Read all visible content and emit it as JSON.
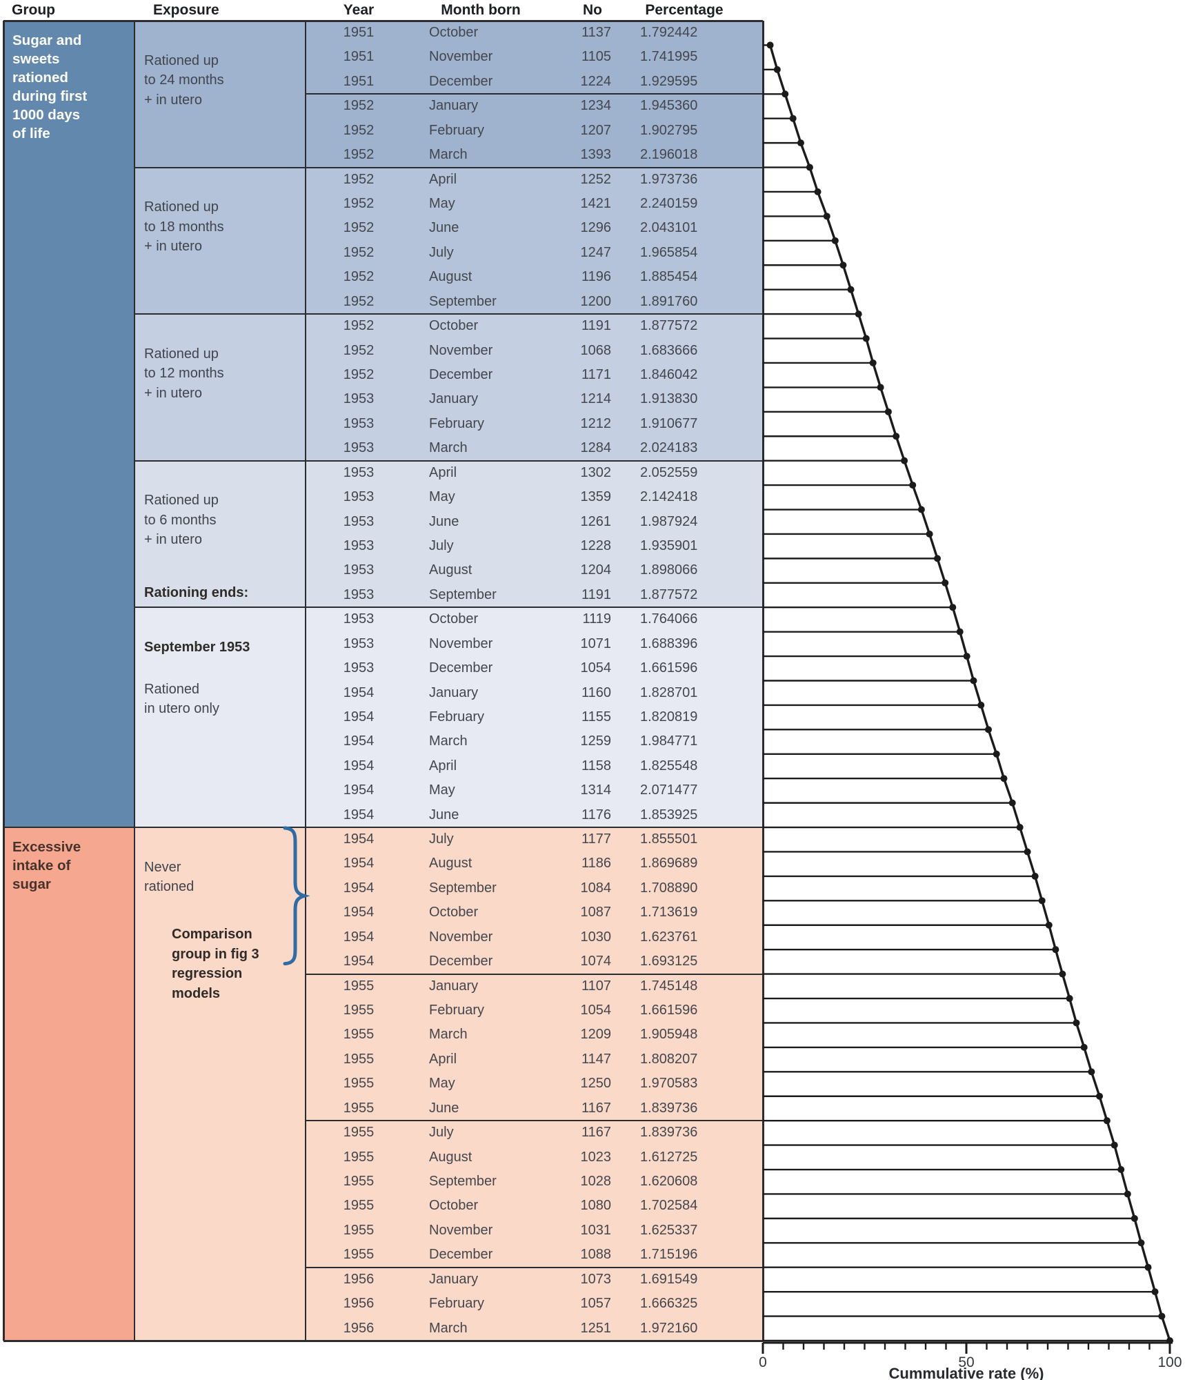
{
  "headers": {
    "group": "Group",
    "exposure": "Exposure",
    "year": "Year",
    "month": "Month born",
    "no": "No",
    "percentage": "Percentage"
  },
  "groups": [
    {
      "label": "Sugar and\nsweets\nrationed\nduring first\n1000 days\nof life",
      "rows": [
        1,
        33
      ],
      "bg": "#6289ad",
      "text": "#ffffff"
    },
    {
      "label": "Excessive\nintake of\nsugar",
      "rows": [
        34,
        54
      ],
      "bg": "#f6a78f",
      "text": "#46332b"
    }
  ],
  "exposure_cells": [
    {
      "rows": [
        1,
        6
      ],
      "bg": "#9fb2ce",
      "label": "Rationed up\nto 24 months\n+ in utero"
    },
    {
      "rows": [
        7,
        12
      ],
      "bg": "#b5c3da",
      "label": "Rationed up\nto 18 months\n+ in utero"
    },
    {
      "rows": [
        13,
        18
      ],
      "bg": "#c4cfe2",
      "label": "Rationed up\nto 12 months\n+ in utero"
    },
    {
      "rows": [
        19,
        24
      ],
      "bg": "#d9deeb",
      "label": "Rationed up\nto 6 months\n+ in utero",
      "footer_bold": "Rationing ends:"
    },
    {
      "rows": [
        25,
        33
      ],
      "bg": "#e8eaf3",
      "header_bold": "September 1953",
      "label": "Rationed\nin utero only"
    },
    {
      "rows": [
        34,
        54
      ],
      "bg": "#fbd9c8",
      "label": "Never\nrationed",
      "note_bold": "Comparison\ngroup in fig 3\nregression\nmodels",
      "brace": {
        "rows": [
          34,
          39
        ],
        "color": "#2e6ca8"
      }
    }
  ],
  "data_block_breaks_after_rows": [
    3,
    6,
    12,
    18,
    24,
    33,
    39,
    45,
    51
  ],
  "chart_data": {
    "type": "table",
    "columns": [
      "Year",
      "Month born",
      "No",
      "Percentage"
    ],
    "rows": [
      [
        1951,
        "October",
        1137,
        "1.792442"
      ],
      [
        1951,
        "November",
        1105,
        "1.741995"
      ],
      [
        1951,
        "December",
        1224,
        "1.929595"
      ],
      [
        1952,
        "January",
        1234,
        "1.945360"
      ],
      [
        1952,
        "February",
        1207,
        "1.902795"
      ],
      [
        1952,
        "March",
        1393,
        "2.196018"
      ],
      [
        1952,
        "April",
        1252,
        "1.973736"
      ],
      [
        1952,
        "May",
        1421,
        "2.240159"
      ],
      [
        1952,
        "June",
        1296,
        "2.043101"
      ],
      [
        1952,
        "July",
        1247,
        "1.965854"
      ],
      [
        1952,
        "August",
        1196,
        "1.885454"
      ],
      [
        1952,
        "September",
        1200,
        "1.891760"
      ],
      [
        1952,
        "October",
        1191,
        "1.877572"
      ],
      [
        1952,
        "November",
        1068,
        "1.683666"
      ],
      [
        1952,
        "December",
        1171,
        "1.846042"
      ],
      [
        1953,
        "January",
        1214,
        "1.913830"
      ],
      [
        1953,
        "February",
        1212,
        "1.910677"
      ],
      [
        1953,
        "March",
        1284,
        "2.024183"
      ],
      [
        1953,
        "April",
        1302,
        "2.052559"
      ],
      [
        1953,
        "May",
        1359,
        "2.142418"
      ],
      [
        1953,
        "June",
        1261,
        "1.987924"
      ],
      [
        1953,
        "July",
        1228,
        "1.935901"
      ],
      [
        1953,
        "August",
        1204,
        "1.898066"
      ],
      [
        1953,
        "September",
        1191,
        "1.877572"
      ],
      [
        1953,
        "October",
        1119,
        "1.764066"
      ],
      [
        1953,
        "November",
        1071,
        "1.688396"
      ],
      [
        1953,
        "December",
        1054,
        "1.661596"
      ],
      [
        1954,
        "January",
        1160,
        "1.828701"
      ],
      [
        1954,
        "February",
        1155,
        "1.820819"
      ],
      [
        1954,
        "March",
        1259,
        "1.984771"
      ],
      [
        1954,
        "April",
        1158,
        "1.825548"
      ],
      [
        1954,
        "May",
        1314,
        "2.071477"
      ],
      [
        1954,
        "June",
        1176,
        "1.853925"
      ],
      [
        1954,
        "July",
        1177,
        "1.855501"
      ],
      [
        1954,
        "August",
        1186,
        "1.869689"
      ],
      [
        1954,
        "September",
        1084,
        "1.708890"
      ],
      [
        1954,
        "October",
        1087,
        "1.713619"
      ],
      [
        1954,
        "November",
        1030,
        "1.623761"
      ],
      [
        1954,
        "December",
        1074,
        "1.693125"
      ],
      [
        1955,
        "January",
        1107,
        "1.745148"
      ],
      [
        1955,
        "February",
        1054,
        "1.661596"
      ],
      [
        1955,
        "March",
        1209,
        "1.905948"
      ],
      [
        1955,
        "April",
        1147,
        "1.808207"
      ],
      [
        1955,
        "May",
        1250,
        "1.970583"
      ],
      [
        1955,
        "June",
        1167,
        "1.839736"
      ],
      [
        1955,
        "July",
        1167,
        "1.839736"
      ],
      [
        1955,
        "August",
        1023,
        "1.612725"
      ],
      [
        1955,
        "September",
        1028,
        "1.620608"
      ],
      [
        1955,
        "October",
        1080,
        "1.702584"
      ],
      [
        1955,
        "November",
        1031,
        "1.625337"
      ],
      [
        1955,
        "December",
        1088,
        "1.715196"
      ],
      [
        1956,
        "January",
        1073,
        "1.691549"
      ],
      [
        1956,
        "February",
        1057,
        "1.666325"
      ],
      [
        1956,
        "March",
        1251,
        "1.972160"
      ]
    ],
    "cumulative_line": {
      "type": "line",
      "xlabel": "Cummulative rate (%)",
      "x_range": [
        0,
        100
      ],
      "x_ticks": [
        0,
        50,
        100
      ],
      "minor_tick_step": 5,
      "note": "x = running cumulative sum of Percentage column; one point per table row"
    }
  }
}
